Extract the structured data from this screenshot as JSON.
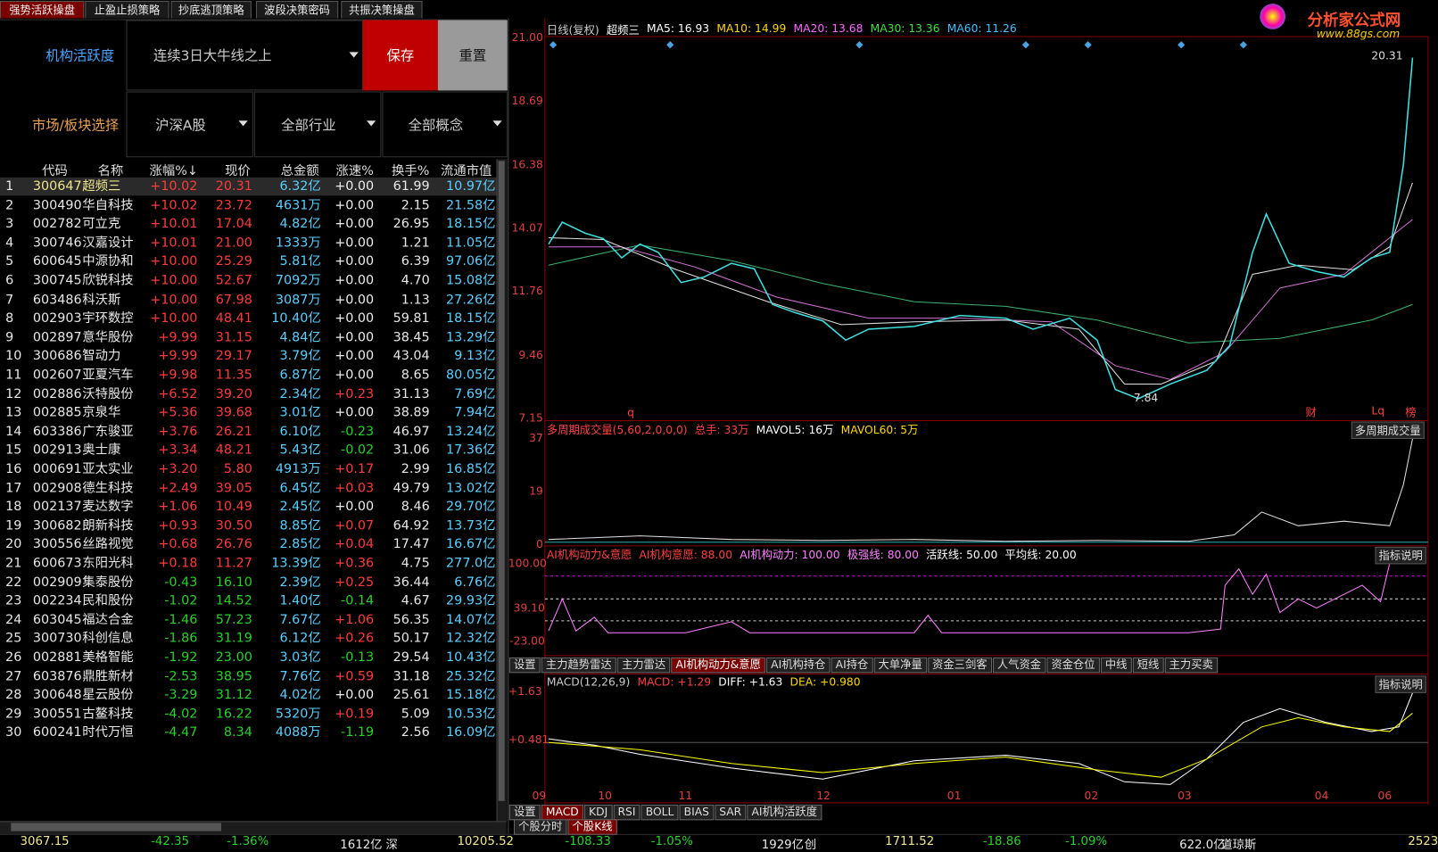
{
  "tabs": [
    "强势活跃操盘",
    "止盈止损策略",
    "抄底逃顶策略",
    "波段决策密码",
    "共振决策操盘"
  ],
  "filter": {
    "label": "机构活跃度",
    "select": "连续3日大牛线之上",
    "save": "保存",
    "reset": "重置",
    "market_label": "市场/板块选择",
    "market": "沪深A股",
    "industry": "全部行业",
    "concept": "全部概念"
  },
  "table": {
    "headers": [
      "代码",
      "名称",
      "涨幅%↓",
      "现价",
      "总金额",
      "涨速%",
      "换手%",
      "流通市值"
    ],
    "rows": [
      [
        "1",
        "300647",
        "超频三",
        "+10.02",
        "20.31",
        "6.32亿",
        "+0.00",
        "61.99",
        "10.97亿"
      ],
      [
        "2",
        "300490",
        "华自科技",
        "+10.02",
        "23.72",
        "4631万",
        "+0.00",
        "2.15",
        "21.58亿"
      ],
      [
        "3",
        "002782",
        "可立克",
        "+10.01",
        "17.04",
        "4.82亿",
        "+0.00",
        "26.95",
        "18.15亿"
      ],
      [
        "4",
        "300746",
        "汉嘉设计",
        "+10.01",
        "21.00",
        "1333万",
        "+0.00",
        "1.21",
        "11.05亿"
      ],
      [
        "5",
        "600645",
        "中源协和",
        "+10.00",
        "25.29",
        "5.81亿",
        "+0.00",
        "6.39",
        "97.06亿"
      ],
      [
        "6",
        "300745",
        "欣锐科技",
        "+10.00",
        "52.67",
        "7092万",
        "+0.00",
        "4.70",
        "15.08亿"
      ],
      [
        "7",
        "603486",
        "科沃斯",
        "+10.00",
        "67.98",
        "3087万",
        "+0.00",
        "1.13",
        "27.26亿"
      ],
      [
        "8",
        "002903",
        "宇环数控",
        "+10.00",
        "48.41",
        "10.40亿",
        "+0.00",
        "59.81",
        "18.15亿"
      ],
      [
        "9",
        "002897",
        "意华股份",
        "+9.99",
        "31.15",
        "4.84亿",
        "+0.00",
        "38.45",
        "13.29亿"
      ],
      [
        "10",
        "300686",
        "智动力",
        "+9.99",
        "29.17",
        "3.79亿",
        "+0.00",
        "43.04",
        "9.13亿"
      ],
      [
        "11",
        "002607",
        "亚夏汽车",
        "+9.98",
        "11.35",
        "6.87亿",
        "+0.00",
        "8.65",
        "80.05亿"
      ],
      [
        "12",
        "002886",
        "沃特股份",
        "+6.52",
        "39.20",
        "2.34亿",
        "+0.23",
        "31.13",
        "7.69亿"
      ],
      [
        "13",
        "002885",
        "京泉华",
        "+5.36",
        "39.68",
        "3.01亿",
        "+0.00",
        "38.89",
        "7.94亿"
      ],
      [
        "14",
        "603386",
        "广东骏亚",
        "+3.76",
        "26.21",
        "6.10亿",
        "-0.23",
        "46.97",
        "13.24亿"
      ],
      [
        "15",
        "002913",
        "奥士康",
        "+3.34",
        "48.21",
        "5.43亿",
        "-0.02",
        "31.06",
        "17.36亿"
      ],
      [
        "16",
        "000691",
        "亚太实业",
        "+3.20",
        "5.80",
        "4913万",
        "+0.17",
        "2.99",
        "16.85亿"
      ],
      [
        "17",
        "002908",
        "德生科技",
        "+2.49",
        "39.05",
        "6.45亿",
        "+0.03",
        "49.79",
        "13.02亿"
      ],
      [
        "18",
        "002137",
        "麦达数字",
        "+1.06",
        "10.49",
        "2.45亿",
        "+0.00",
        "8.46",
        "29.70亿"
      ],
      [
        "19",
        "300682",
        "朗新科技",
        "+0.93",
        "30.50",
        "8.85亿",
        "+0.07",
        "64.92",
        "13.73亿"
      ],
      [
        "20",
        "300556",
        "丝路视觉",
        "+0.68",
        "26.76",
        "2.85亿",
        "+0.04",
        "17.47",
        "16.67亿"
      ],
      [
        "21",
        "600673",
        "东阳光科",
        "+0.18",
        "11.27",
        "13.39亿",
        "+0.36",
        "4.75",
        "277.0亿"
      ],
      [
        "22",
        "002909",
        "集泰股份",
        "-0.43",
        "16.10",
        "2.39亿",
        "+0.25",
        "36.44",
        "6.76亿"
      ],
      [
        "23",
        "002234",
        "民和股份",
        "-1.02",
        "14.52",
        "1.40亿",
        "-0.14",
        "4.67",
        "29.93亿"
      ],
      [
        "24",
        "603045",
        "福达合金",
        "-1.46",
        "57.23",
        "7.67亿",
        "+1.06",
        "56.35",
        "14.07亿"
      ],
      [
        "25",
        "300730",
        "科创信息",
        "-1.86",
        "31.19",
        "6.12亿",
        "+0.26",
        "50.17",
        "12.32亿"
      ],
      [
        "26",
        "002881",
        "美格智能",
        "-1.92",
        "23.00",
        "3.03亿",
        "-0.13",
        "29.54",
        "10.43亿"
      ],
      [
        "27",
        "603876",
        "鼎胜新材",
        "-2.53",
        "38.95",
        "7.76亿",
        "+0.59",
        "31.18",
        "25.32亿"
      ],
      [
        "28",
        "300648",
        "星云股份",
        "-3.29",
        "31.12",
        "4.02亿",
        "+0.00",
        "25.61",
        "15.18亿"
      ],
      [
        "29",
        "300551",
        "古鳌科技",
        "-4.02",
        "16.22",
        "5320万",
        "+0.19",
        "5.09",
        "10.53亿"
      ],
      [
        "30",
        "600241",
        "时代万恒",
        "-4.47",
        "8.34",
        "4088万",
        "-1.19",
        "2.56",
        "16.09亿"
      ]
    ]
  },
  "status": [
    "3067.15",
    "-42.35",
    "-1.36%",
    "1612亿",
    "深",
    "10205.52",
    "-108.33",
    "-1.05%",
    "1929亿",
    "创",
    "1711.52",
    "-18.86",
    "-1.09%",
    "622.0亿",
    "道琼斯",
    "2523"
  ],
  "logo": {
    "name": "分析家公式网",
    "url": "www.88gs.com"
  },
  "kline": {
    "header": [
      "日线(复权)",
      "超频三",
      "MA5: 16.93",
      "MA10: 14.99",
      "MA20: 13.68",
      "MA30: 13.36",
      "MA60: 11.26"
    ],
    "yticks": [
      "21.00",
      "18.69",
      "16.38",
      "14.07",
      "11.76",
      "9.46",
      "7.15"
    ],
    "high": "20.31",
    "low": "7.84",
    "markers": [
      "q",
      "财",
      "Lq",
      "榜"
    ]
  },
  "volume": {
    "header": [
      "多周期成交量(5,60,2,0,0,0)",
      "总手: 33万",
      "MAVOL5: 16万",
      "MAVOL60: 5万"
    ],
    "yticks": [
      "37",
      "19",
      "0"
    ],
    "dropdown": "多周期成交量"
  },
  "ai": {
    "header": [
      "AI机构动力&意愿",
      "AI机构意愿: 88.00",
      "AI机构动力: 100.00",
      "极强线: 80.00",
      "活跃线: 50.00",
      "平均线: 20.00"
    ],
    "yticks": [
      "100.00",
      "39.10",
      "-23.00"
    ],
    "help": "指标说明"
  },
  "indicator_tabs": [
    "设置",
    "主力趋势雷达",
    "主力雷达",
    "AI机构动力&意愿",
    "AI机构持仓",
    "AI持仓",
    "大单净量",
    "资金三剑客",
    "人气资金",
    "资金仓位",
    "中线",
    "短线",
    "主力买卖"
  ],
  "macd": {
    "header": [
      "MACD(12,26,9)",
      "MACD: +1.29",
      "DIFF: +1.63",
      "DEA: +0.980"
    ],
    "yticks": [
      "+1.63",
      "+0.481"
    ],
    "help": "指标说明"
  },
  "xticks": [
    "09",
    "10",
    "11",
    "12",
    "01",
    "02",
    "03",
    "04",
    "06"
  ],
  "bottom_tabs": [
    "设置",
    "MACD",
    "KDJ",
    "RSI",
    "BOLL",
    "BIAS",
    "SAR",
    "AI机构活跃度"
  ],
  "view_tabs": [
    "个股分时",
    "个股K线"
  ]
}
